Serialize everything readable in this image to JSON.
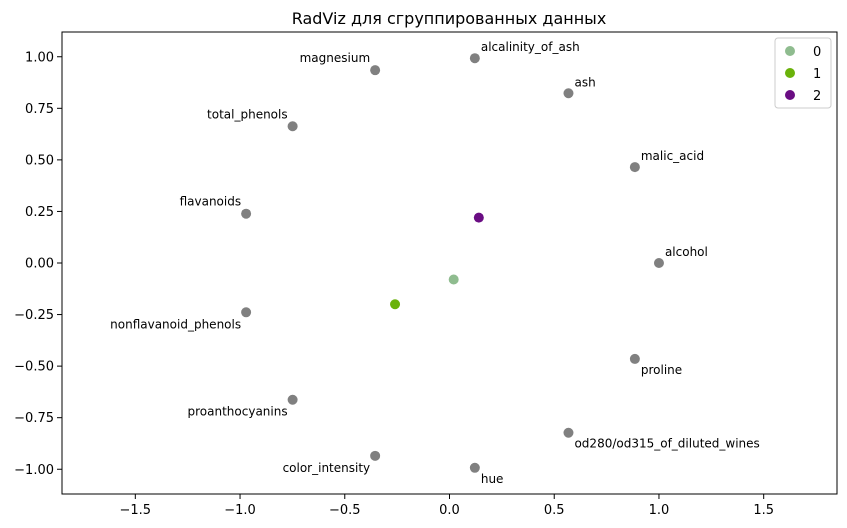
{
  "chart_data": {
    "type": "scatter",
    "title": "RadViz для сгруппированных данных",
    "xlabel": "",
    "ylabel": "",
    "xlim": [
      -1.85,
      1.85
    ],
    "ylim": [
      -1.12,
      1.12
    ],
    "x_ticks": [
      -1.5,
      -1.0,
      -0.5,
      0.0,
      0.5,
      1.0,
      1.5
    ],
    "x_tick_labels": [
      "−1.5",
      "−1.0",
      "−0.5",
      "0.0",
      "0.5",
      "1.0",
      "1.5"
    ],
    "y_ticks": [
      1.0,
      0.75,
      0.5,
      0.25,
      0.0,
      -0.25,
      -0.5,
      -0.75,
      -1.0
    ],
    "y_tick_labels": [
      "1.00",
      "0.75",
      "0.50",
      "0.25",
      "0.00",
      "−0.25",
      "−0.50",
      "−0.75",
      "−1.00"
    ],
    "grid": false,
    "legend_position": "top-right",
    "anchor_color": "#808080",
    "anchors": [
      {
        "name": "alcohol",
        "x": 1.0,
        "y": 0.0
      },
      {
        "name": "malic_acid",
        "x": 0.885,
        "y": 0.465
      },
      {
        "name": "ash",
        "x": 0.568,
        "y": 0.823
      },
      {
        "name": "alcalinity_of_ash",
        "x": 0.121,
        "y": 0.993
      },
      {
        "name": "magnesium",
        "x": -0.355,
        "y": 0.935
      },
      {
        "name": "total_phenols",
        "x": -0.749,
        "y": 0.663
      },
      {
        "name": "flavanoids",
        "x": -0.971,
        "y": 0.239
      },
      {
        "name": "nonflavanoid_phenols",
        "x": -0.971,
        "y": -0.239
      },
      {
        "name": "proanthocyanins",
        "x": -0.749,
        "y": -0.663
      },
      {
        "name": "color_intensity",
        "x": -0.355,
        "y": -0.935
      },
      {
        "name": "hue",
        "x": 0.121,
        "y": -0.993
      },
      {
        "name": "od280/od315_of_diluted_wines",
        "x": 0.568,
        "y": -0.823
      },
      {
        "name": "proline",
        "x": 0.885,
        "y": -0.465
      }
    ],
    "series": [
      {
        "name": "0",
        "color": "#8fbc8f",
        "points": [
          {
            "x": 0.02,
            "y": -0.08
          }
        ]
      },
      {
        "name": "1",
        "color": "#6ab20a",
        "points": [
          {
            "x": -0.26,
            "y": -0.2
          }
        ]
      },
      {
        "name": "2",
        "color": "#6a0d83",
        "points": [
          {
            "x": 0.14,
            "y": 0.22
          }
        ]
      }
    ]
  }
}
